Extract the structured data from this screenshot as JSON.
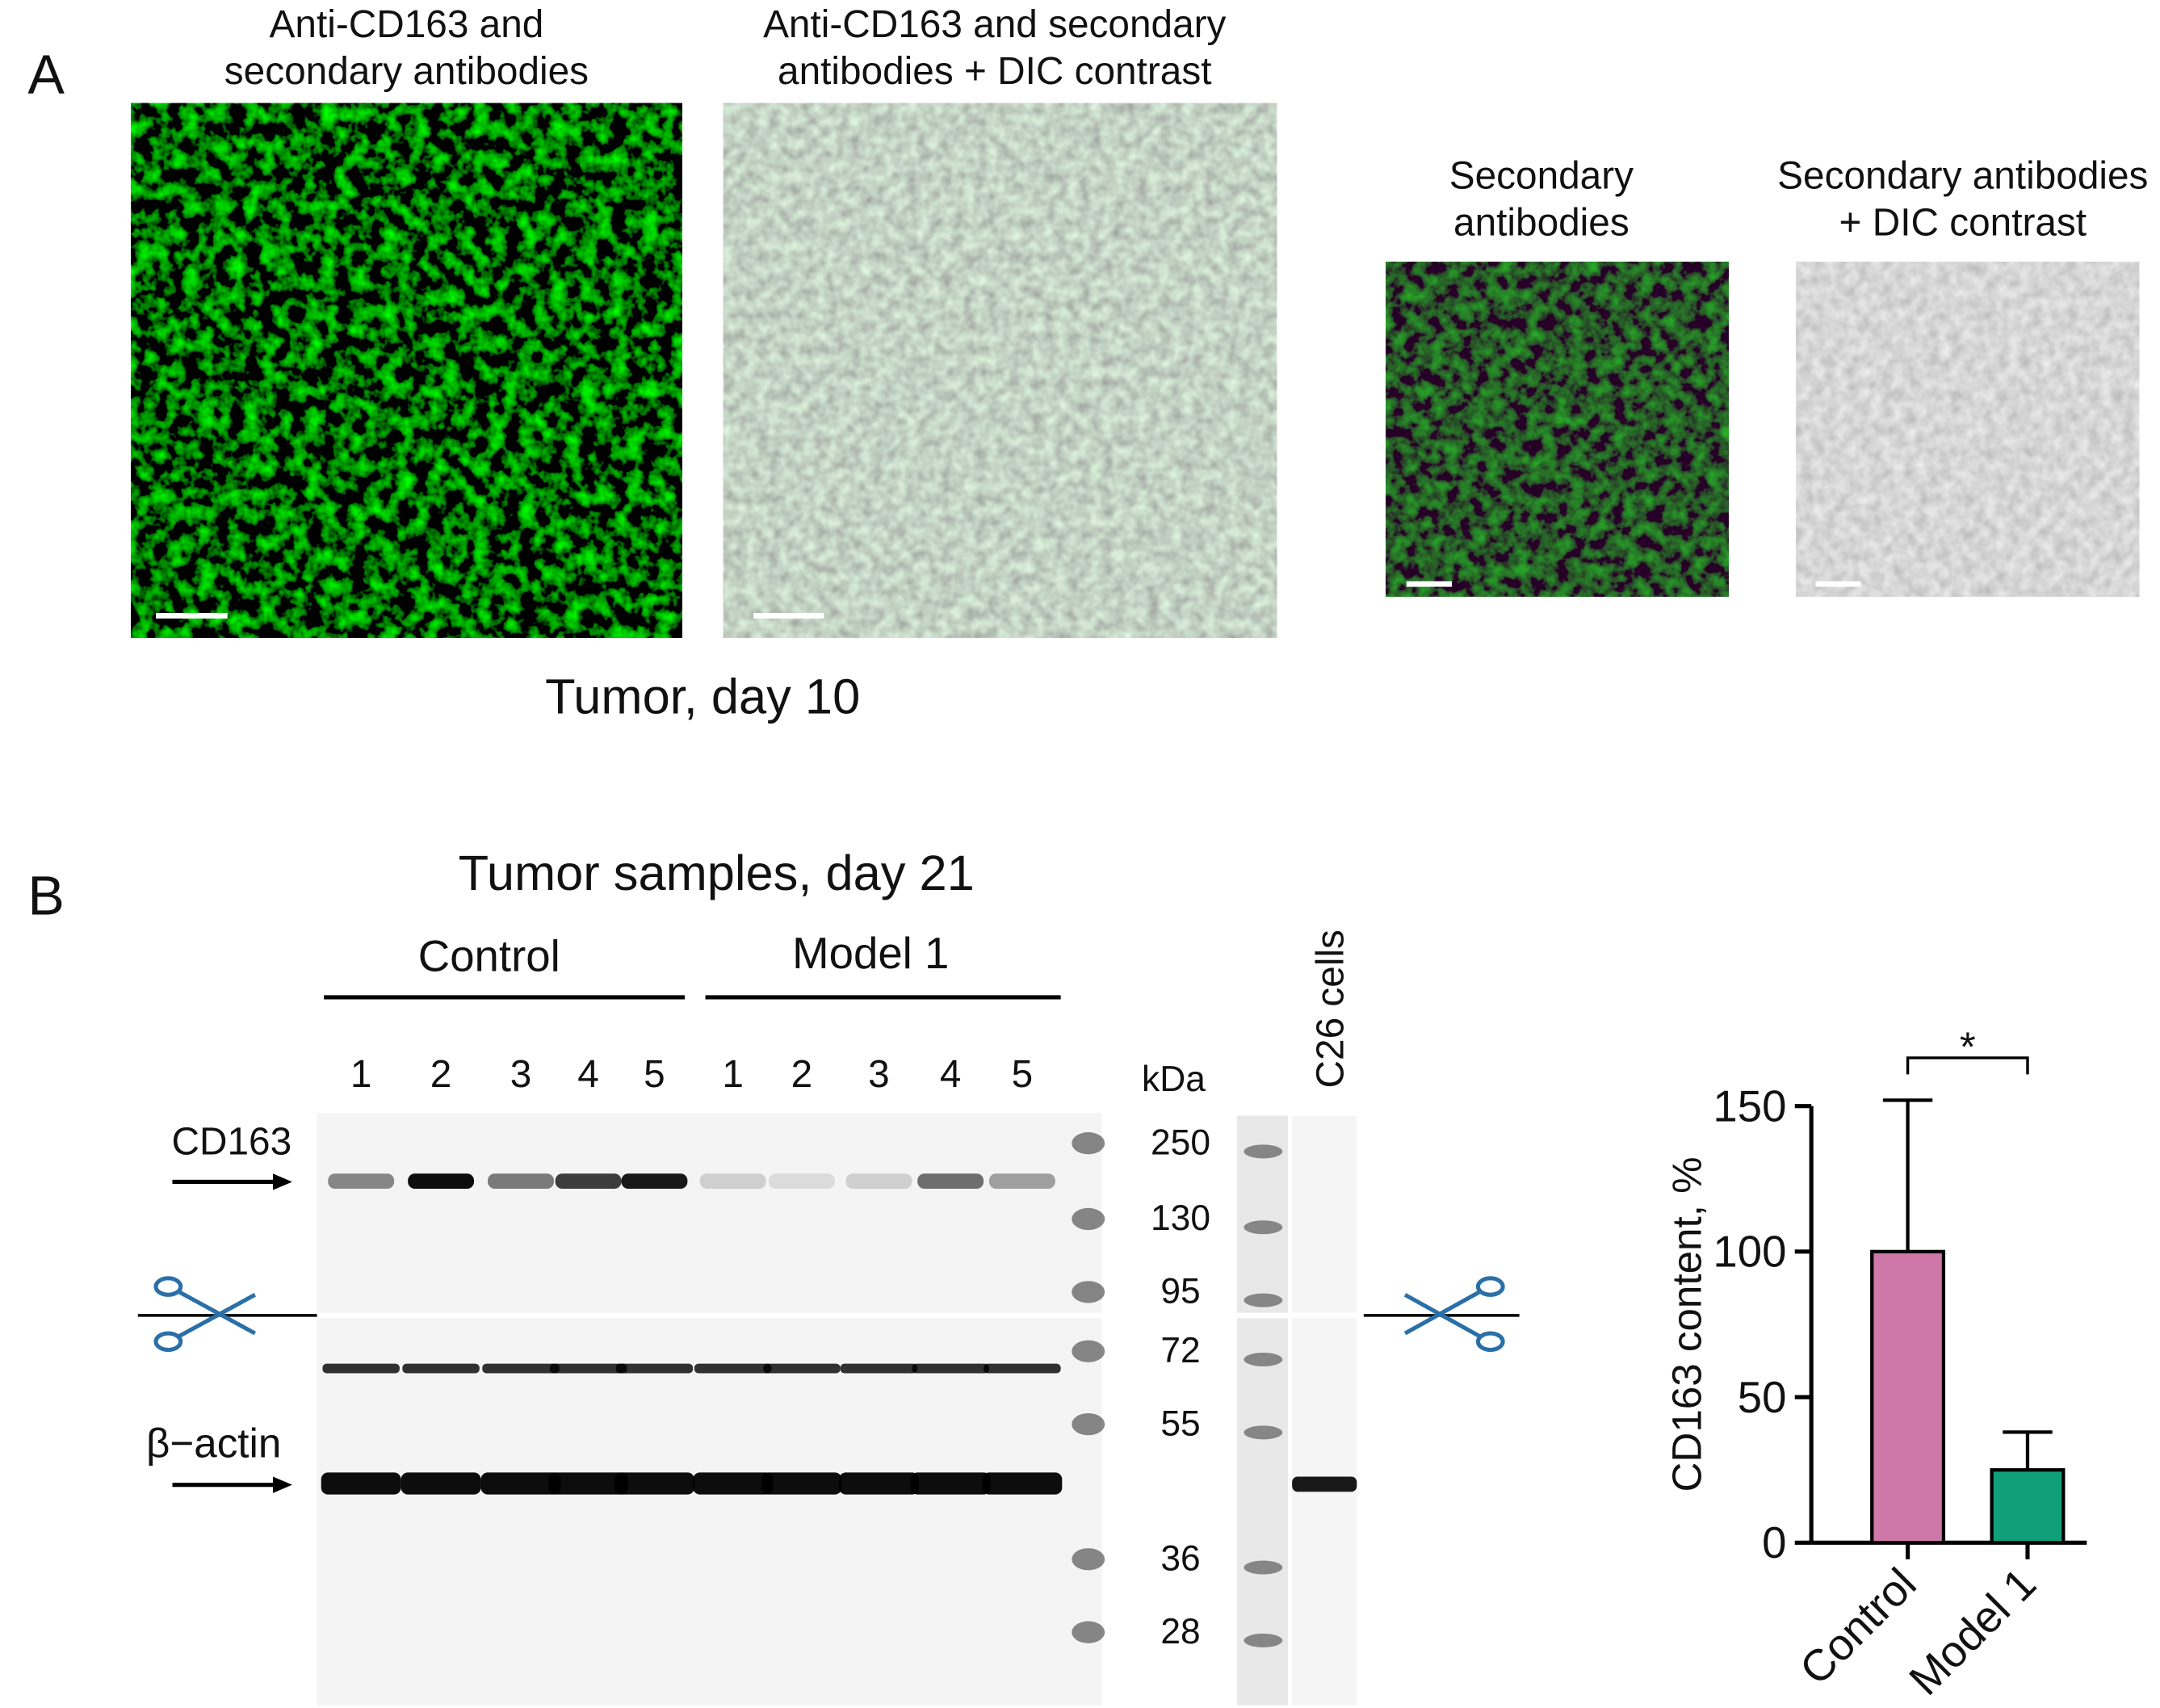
{
  "panel_a": {
    "label": "A",
    "images": [
      {
        "title_lines": [
          "Anti-CD163 and",
          "secondary antibodies"
        ]
      },
      {
        "title_lines": [
          "Anti-CD163 and secondary",
          "antibodies + DIC contrast"
        ]
      },
      {
        "title_lines": [
          "Secondary",
          "antibodies"
        ]
      },
      {
        "title_lines": [
          "Secondary antibodies",
          "+ DIC contrast"
        ]
      }
    ],
    "caption": "Tumor, day 10"
  },
  "panel_b": {
    "label": "B",
    "title": "Tumor samples, day 21",
    "groups": [
      "Control",
      "Model 1"
    ],
    "lanes": [
      1,
      2,
      3,
      4,
      5,
      1,
      2,
      3,
      4,
      5
    ],
    "kda_label": "kDa",
    "markers": [
      250,
      130,
      95,
      72,
      55,
      36,
      28
    ],
    "side_lane_label": "C26 cells",
    "band_labels": [
      "CD163",
      "β−actin"
    ]
  },
  "chart_data": {
    "type": "bar",
    "categories": [
      "Control",
      "Model 1"
    ],
    "values": [
      100,
      25
    ],
    "errors": [
      52,
      13
    ],
    "colors": [
      "#cd78a8",
      "#0fa07a"
    ],
    "ylabel": "CD163 content, %",
    "ylim": [
      0,
      150
    ],
    "yticks": [
      0,
      50,
      100,
      150
    ],
    "significance": "*"
  }
}
